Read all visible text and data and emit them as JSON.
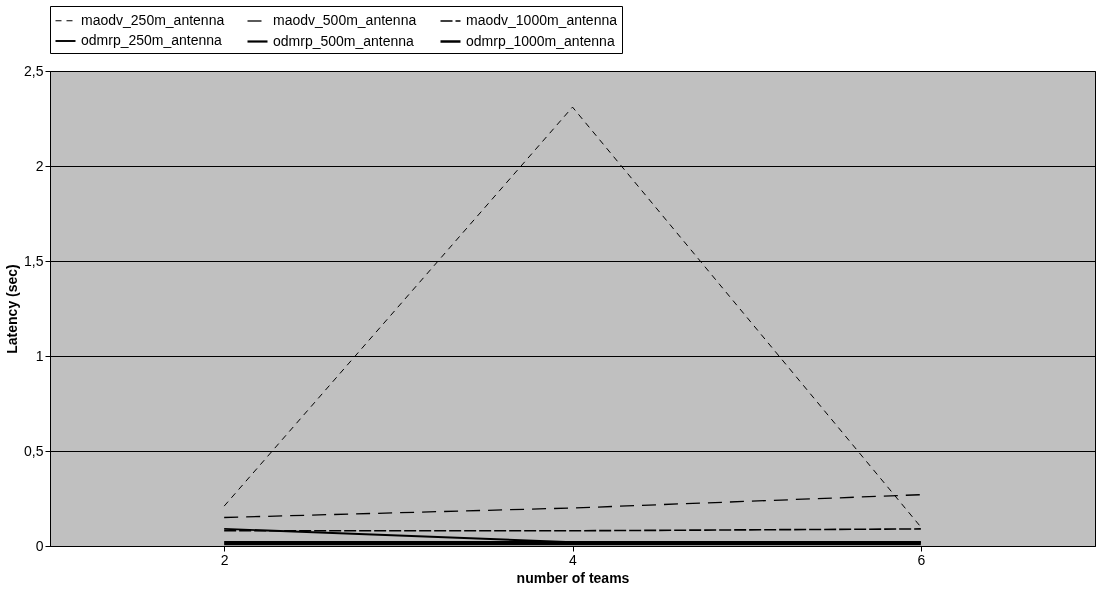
{
  "chart_data": {
    "type": "line",
    "xlabel": "number of teams",
    "ylabel": "Latency (sec)",
    "categories": [
      "2",
      "4",
      "6"
    ],
    "series": [
      {
        "name": "maodv_250m_antenna",
        "color": "#000000",
        "line_style": "dashed",
        "values": [
          0.21,
          2.31,
          0.1
        ]
      },
      {
        "name": "maodv_500m_antenna",
        "color": "#000000",
        "line_style": "dashed",
        "values": [
          0.15,
          0.2,
          0.27
        ]
      },
      {
        "name": "maodv_1000m_antenna",
        "color": "#000000",
        "line_style": "dashed",
        "values": [
          0.08,
          0.08,
          0.09
        ]
      },
      {
        "name": "odmrp_250m_antenna",
        "color": "#000000",
        "line_style": "solid",
        "values": [
          0.09,
          0.02,
          0.02
        ]
      },
      {
        "name": "odmrp_500m_antenna",
        "color": "#000000",
        "line_style": "solid",
        "values": [
          0.02,
          0.02,
          0.02
        ]
      },
      {
        "name": "odmrp_1000m_antenna",
        "color": "#000000",
        "line_style": "solid",
        "values": [
          0.01,
          0.01,
          0.01
        ]
      }
    ],
    "ylim": [
      0,
      2.5
    ],
    "yticks": [
      0,
      {
        "value": 0.5,
        "label": "0,5"
      },
      1,
      {
        "value": 1.5,
        "label": "1,5"
      },
      2,
      {
        "value": 2.5,
        "label": "2,5"
      }
    ],
    "grid": "y",
    "legend": "top",
    "marker": "none"
  }
}
